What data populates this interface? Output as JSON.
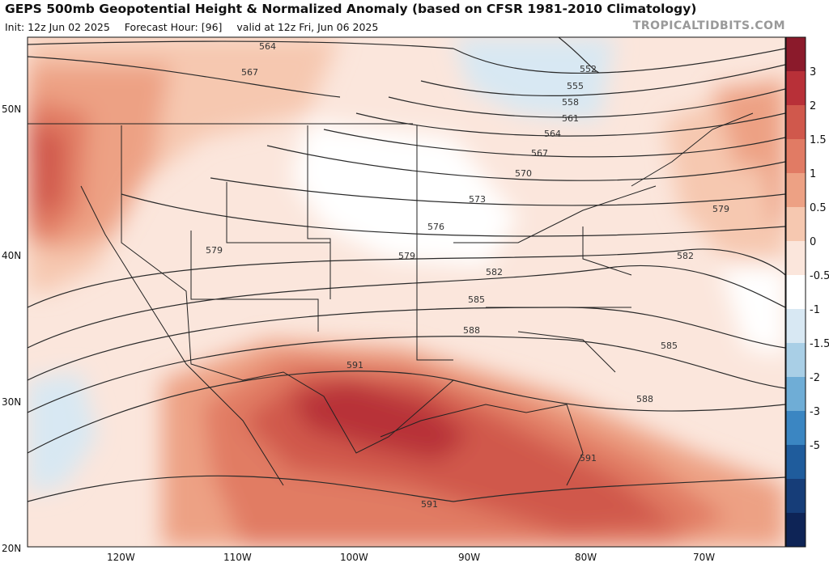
{
  "header": {
    "title": "GEPS 500mb Geopotential Height & Normalized Anomaly (based on CFSR 1981-2010 Climatology)",
    "init": "Init: 12z Jun 02 2025",
    "forecast_hour": "Forecast Hour: [96]",
    "valid": "valid at 12z Fri, Jun 06 2025",
    "brand": "TROPICALTIDBITS.COM"
  },
  "axes": {
    "lat_labels": [
      "50N",
      "40N",
      "30N",
      "20N"
    ],
    "lon_labels": [
      "120W",
      "110W",
      "100W",
      "90W",
      "80W",
      "70W"
    ]
  },
  "contours": {
    "labels": [
      "564",
      "567",
      "552",
      "555",
      "558",
      "561",
      "564",
      "567",
      "570",
      "573",
      "576",
      "579",
      "579",
      "582",
      "585",
      "588",
      "591",
      "591",
      "591",
      "579",
      "582",
      "585",
      "588"
    ]
  },
  "colorbar": {
    "ticks": [
      "3",
      "2",
      "1.5",
      "1",
      "0.5",
      "0",
      "-0.5",
      "-1",
      "-1.5",
      "-2",
      "-3",
      "-5"
    ],
    "colors": [
      "#8b1a2b",
      "#b83038",
      "#d0584c",
      "#e17b64",
      "#eda184",
      "#f6c8b0",
      "#fbe6dc",
      "#ffffff",
      "#d8e8f3",
      "#a9cfe6",
      "#6fadd6",
      "#3b86c2",
      "#1f5c9c",
      "#163d78",
      "#0e2456"
    ]
  }
}
